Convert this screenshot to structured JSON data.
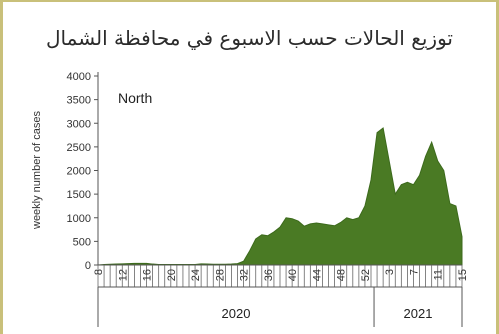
{
  "title": "توزيع الحالات حسب الاسبوع في محافظة الشمال",
  "chart_data": {
    "type": "area",
    "annotation": "North",
    "ylabel": "weekly number of cases",
    "xlabel": "",
    "ylim": [
      0,
      4000
    ],
    "yticks": [
      0,
      500,
      1000,
      1500,
      2000,
      2500,
      3000,
      3500,
      4000
    ],
    "grid": false,
    "color": "#4a7a24",
    "week_ticks": [
      "8",
      "12",
      "16",
      "20",
      "24",
      "28",
      "32",
      "36",
      "40",
      "44",
      "48",
      "52",
      "3",
      "7",
      "11",
      "15"
    ],
    "year_labels": [
      "2020",
      "2021"
    ],
    "weeks": [
      "8",
      "9",
      "10",
      "11",
      "12",
      "13",
      "14",
      "15",
      "16",
      "17",
      "18",
      "19",
      "20",
      "21",
      "22",
      "23",
      "24",
      "25",
      "26",
      "27",
      "28",
      "29",
      "30",
      "31",
      "32",
      "33",
      "34",
      "35",
      "36",
      "37",
      "38",
      "39",
      "40",
      "41",
      "42",
      "43",
      "44",
      "45",
      "46",
      "47",
      "48",
      "49",
      "50",
      "51",
      "52",
      "53",
      "1",
      "2",
      "3",
      "4",
      "5",
      "6",
      "7",
      "8",
      "9",
      "10",
      "11",
      "12",
      "13",
      "14",
      "15"
    ],
    "values": [
      0,
      10,
      15,
      20,
      25,
      30,
      35,
      35,
      35,
      20,
      10,
      10,
      10,
      10,
      10,
      10,
      10,
      25,
      20,
      15,
      15,
      15,
      20,
      30,
      80,
      300,
      550,
      640,
      620,
      700,
      800,
      1000,
      980,
      930,
      820,
      870,
      890,
      870,
      850,
      830,
      900,
      1000,
      960,
      1000,
      1250,
      1800,
      2800,
      2900,
      2200,
      1500,
      1700,
      1750,
      1700,
      1900,
      2300,
      2600,
      2200,
      2000,
      1300,
      1250,
      600
    ],
    "year_split_after": "53"
  }
}
